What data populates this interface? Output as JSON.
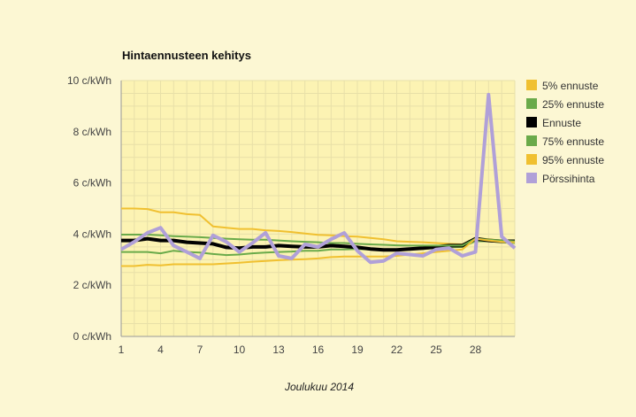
{
  "chart_data": {
    "type": "line",
    "title": "Hintaennusteen kehitys",
    "xlabel": "Joulukuu 2014",
    "ylabel": "",
    "xlim": [
      1,
      31
    ],
    "ylim": [
      0,
      10
    ],
    "x_ticks": [
      "1",
      "4",
      "7",
      "10",
      "13",
      "16",
      "19",
      "22",
      "25",
      "28"
    ],
    "x_tick_values": [
      1,
      4,
      7,
      10,
      13,
      16,
      19,
      22,
      25,
      28
    ],
    "y_ticks": [
      "0 c/kWh",
      "2 c/kWh",
      "4 c/kWh",
      "6 c/kWh",
      "8 c/kWh",
      "10 c/kWh"
    ],
    "y_tick_values": [
      0,
      2,
      4,
      6,
      8,
      10
    ],
    "grid": true,
    "legend_position": "right",
    "x": [
      1,
      2,
      3,
      4,
      5,
      6,
      7,
      8,
      9,
      10,
      11,
      12,
      13,
      14,
      15,
      16,
      17,
      18,
      19,
      20,
      21,
      22,
      23,
      24,
      25,
      26,
      27,
      28,
      29,
      30,
      31
    ],
    "series": [
      {
        "name": "5% ennuste",
        "color": "#f0c030",
        "width": 2,
        "values": [
          5.0,
          5.0,
          4.98,
          4.85,
          4.85,
          4.78,
          4.75,
          4.3,
          4.25,
          4.2,
          4.2,
          4.15,
          4.12,
          4.08,
          4.02,
          3.97,
          3.95,
          3.92,
          3.9,
          3.85,
          3.8,
          3.72,
          3.7,
          3.68,
          3.65,
          3.62,
          3.6,
          3.85,
          3.8,
          3.75,
          3.7
        ]
      },
      {
        "name": "25% ennuste",
        "color": "#6aaa4a",
        "width": 2,
        "values": [
          3.3,
          3.3,
          3.3,
          3.25,
          3.35,
          3.3,
          3.28,
          3.22,
          3.18,
          3.2,
          3.25,
          3.28,
          3.3,
          3.32,
          3.35,
          3.35,
          3.4,
          3.4,
          3.42,
          3.4,
          3.38,
          3.38,
          3.4,
          3.42,
          3.45,
          3.48,
          3.5,
          3.72,
          3.72,
          3.68,
          3.65
        ]
      },
      {
        "name": "Ennuste",
        "color": "#000000",
        "width": 4,
        "values": [
          3.75,
          3.75,
          3.82,
          3.75,
          3.75,
          3.68,
          3.65,
          3.62,
          3.48,
          3.45,
          3.5,
          3.5,
          3.55,
          3.52,
          3.5,
          3.5,
          3.55,
          3.52,
          3.48,
          3.42,
          3.38,
          3.38,
          3.42,
          3.45,
          3.5,
          3.55,
          3.55,
          3.82,
          3.75,
          3.72,
          3.72
        ]
      },
      {
        "name": "75% ennuste",
        "color": "#6aaa4a",
        "width": 2,
        "values": [
          3.98,
          3.98,
          3.98,
          3.95,
          3.92,
          3.9,
          3.88,
          3.85,
          3.82,
          3.8,
          3.78,
          3.78,
          3.75,
          3.72,
          3.7,
          3.68,
          3.65,
          3.65,
          3.62,
          3.6,
          3.58,
          3.56,
          3.55,
          3.55,
          3.55,
          3.55,
          3.55,
          3.82,
          3.78,
          3.75,
          3.72
        ]
      },
      {
        "name": "95% ennuste",
        "color": "#f0c030",
        "width": 2,
        "values": [
          2.75,
          2.75,
          2.8,
          2.78,
          2.82,
          2.82,
          2.82,
          2.82,
          2.85,
          2.88,
          2.92,
          2.95,
          2.98,
          3.0,
          3.02,
          3.05,
          3.1,
          3.12,
          3.12,
          3.12,
          3.12,
          3.15,
          3.2,
          3.25,
          3.3,
          3.35,
          3.4,
          3.82,
          3.75,
          3.7,
          3.68
        ]
      },
      {
        "name": "Pörssihinta",
        "color": "#b0a0d8",
        "width": 4,
        "values": [
          3.4,
          3.7,
          4.05,
          4.25,
          3.55,
          3.3,
          3.05,
          3.95,
          3.7,
          3.3,
          3.65,
          4.05,
          3.15,
          3.05,
          3.6,
          3.5,
          3.8,
          4.05,
          3.35,
          2.9,
          2.95,
          3.25,
          3.2,
          3.15,
          3.4,
          3.45,
          3.15,
          3.3,
          9.45,
          3.9,
          3.45
        ]
      }
    ]
  }
}
